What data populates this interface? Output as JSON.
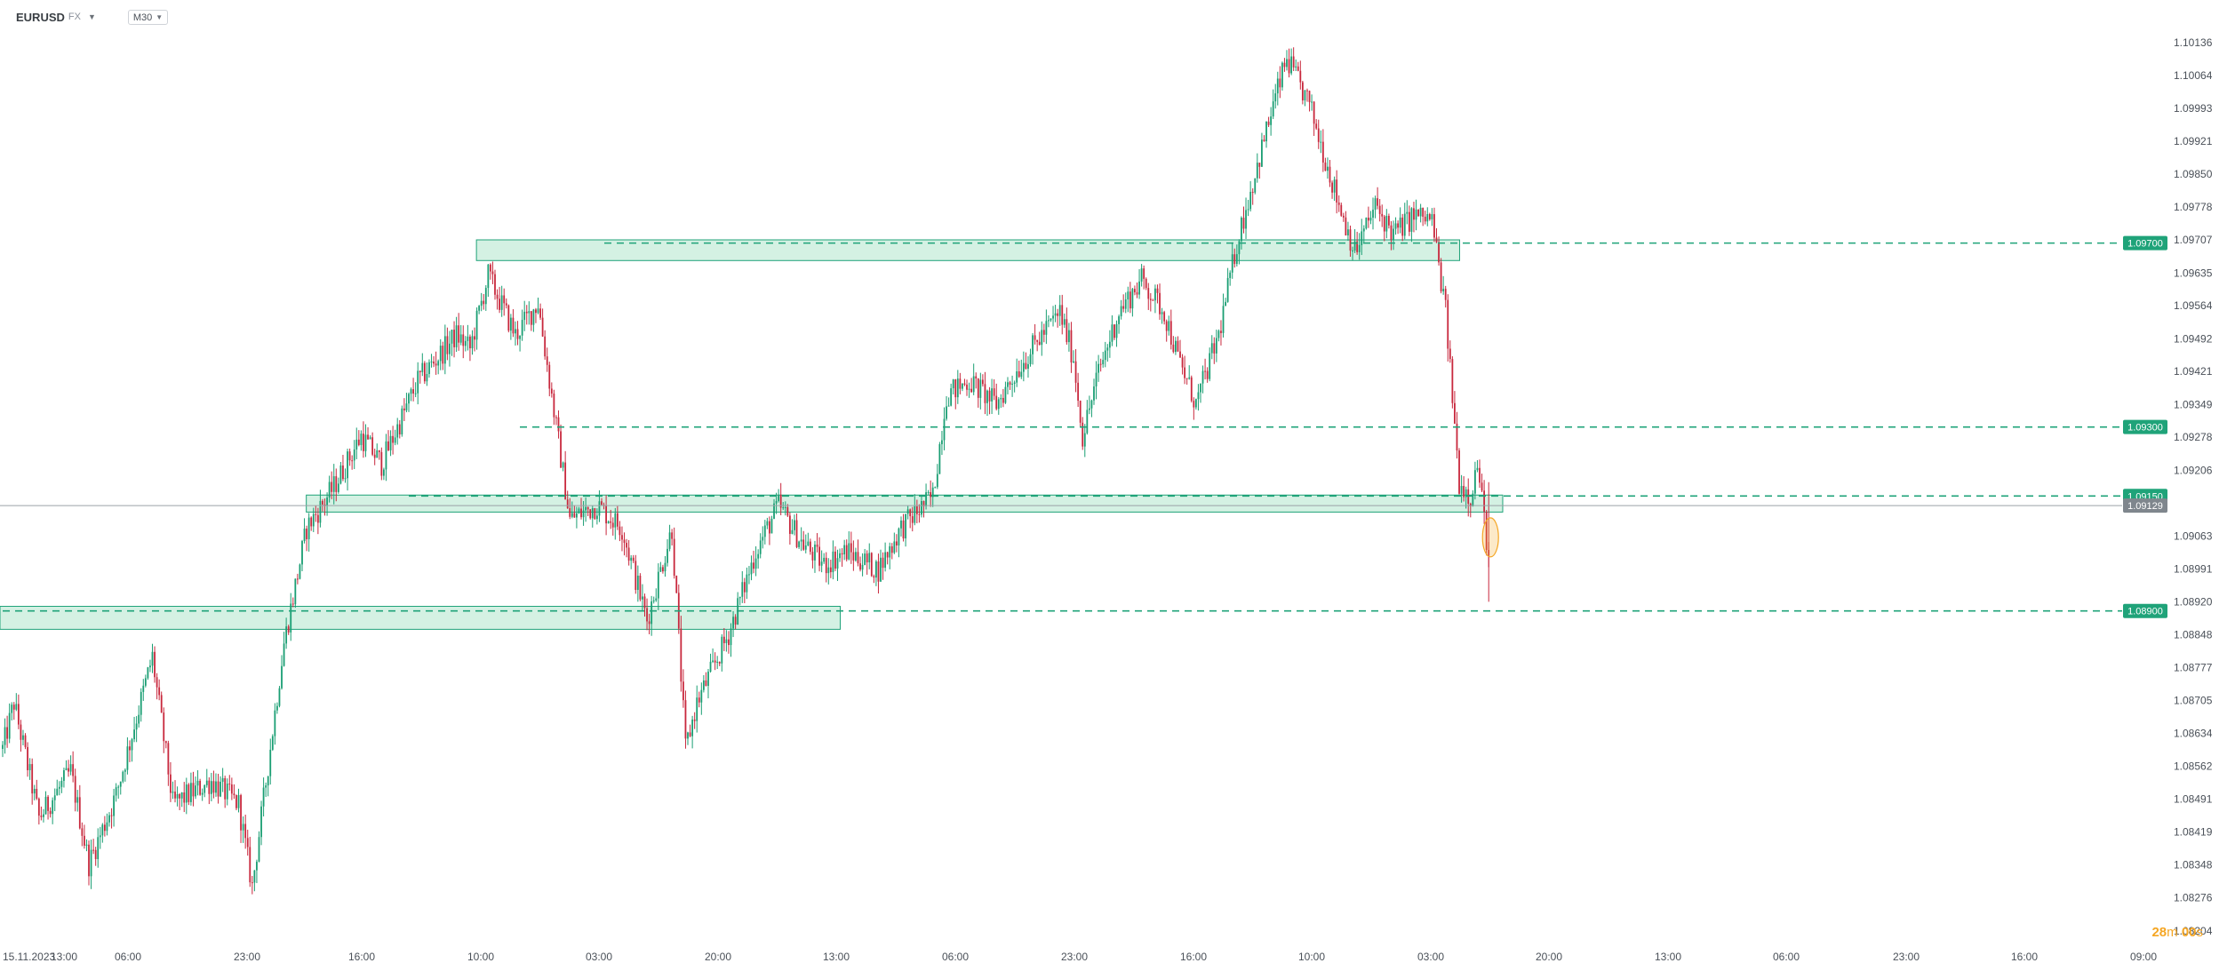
{
  "header": {
    "symbol": "EURUSD",
    "symbol_suffix": "FX",
    "timeframe": "M30"
  },
  "timer": {
    "minutes": "28",
    "min_unit": "m",
    "seconds": "00",
    "sec_unit": "s"
  },
  "colors": {
    "up": "#1a9e73",
    "down": "#c8283d",
    "zone_fill": "#cdeede",
    "zone_stroke": "#1fa379",
    "level": "#1fa379",
    "current": "#9aa0a6",
    "highlight": "#f5a623"
  },
  "chart_data": {
    "type": "candlestick",
    "symbol": "EURUSD",
    "timeframe": "M30",
    "ylim": [
      1.082,
      1.1019
    ],
    "y_ticks": [
      1.10136,
      1.10064,
      1.09993,
      1.09921,
      1.0985,
      1.09778,
      1.09707,
      1.09635,
      1.09564,
      1.09492,
      1.09421,
      1.09349,
      1.09278,
      1.09206,
      1.09063,
      1.08991,
      1.0892,
      1.08848,
      1.08777,
      1.08705,
      1.08634,
      1.08562,
      1.08491,
      1.08419,
      1.08348,
      1.08276,
      1.08204
    ],
    "x_ticks": [
      "15.11.2023",
      "13:00",
      "06:00",
      "23:00",
      "16:00",
      "10:00",
      "03:00",
      "20:00",
      "13:00",
      "06:00",
      "23:00",
      "16:00",
      "10:00",
      "03:00",
      "20:00",
      "13:00",
      "06:00",
      "23:00",
      "16:00",
      "09:00"
    ],
    "levels": [
      {
        "price": 1.097,
        "label": "1.09700"
      },
      {
        "price": 1.093,
        "label": "1.09300"
      },
      {
        "price": 1.0915,
        "label": "1.09150"
      },
      {
        "price": 1.089,
        "label": "1.08900"
      }
    ],
    "current_price": {
      "price": 1.09129,
      "label": "1.09129"
    },
    "zones": [
      {
        "from_bar": 0,
        "to_bar": 368,
        "top": 1.0891,
        "bottom": 1.0886
      },
      {
        "from_bar": 135,
        "to_bar": 660,
        "top": 1.09152,
        "bottom": 1.09115
      },
      {
        "from_bar": 210,
        "to_bar": 641,
        "top": 1.09707,
        "bottom": 1.09662
      }
    ],
    "anchors": [
      [
        0,
        1.086
      ],
      [
        5,
        1.087
      ],
      [
        16,
        1.0845
      ],
      [
        30,
        1.0855
      ],
      [
        38,
        1.0835
      ],
      [
        50,
        1.085
      ],
      [
        66,
        1.088
      ],
      [
        75,
        1.0848
      ],
      [
        92,
        1.0853
      ],
      [
        104,
        1.0848
      ],
      [
        110,
        1.083
      ],
      [
        124,
        1.0883
      ],
      [
        134,
        1.0908
      ],
      [
        146,
        1.0917
      ],
      [
        158,
        1.0928
      ],
      [
        167,
        1.0922
      ],
      [
        183,
        1.094
      ],
      [
        200,
        1.095
      ],
      [
        206,
        1.0947
      ],
      [
        214,
        1.0963
      ],
      [
        226,
        1.095
      ],
      [
        236,
        1.0957
      ],
      [
        244,
        1.093
      ],
      [
        250,
        1.091
      ],
      [
        262,
        1.0913
      ],
      [
        273,
        1.0908
      ],
      [
        284,
        1.0888
      ],
      [
        295,
        1.0908
      ],
      [
        301,
        1.086
      ],
      [
        306,
        1.087
      ],
      [
        320,
        1.0885
      ],
      [
        332,
        1.0903
      ],
      [
        342,
        1.0913
      ],
      [
        352,
        1.0905
      ],
      [
        362,
        1.09
      ],
      [
        372,
        1.0903
      ],
      [
        386,
        1.0899
      ],
      [
        396,
        1.0908
      ],
      [
        410,
        1.0915
      ],
      [
        416,
        1.0937
      ],
      [
        426,
        1.094
      ],
      [
        438,
        1.0935
      ],
      [
        448,
        1.0943
      ],
      [
        458,
        1.095
      ],
      [
        466,
        1.0955
      ],
      [
        472,
        1.0945
      ],
      [
        476,
        1.0928
      ],
      [
        483,
        1.0942
      ],
      [
        492,
        1.0955
      ],
      [
        502,
        1.0962
      ],
      [
        512,
        1.0955
      ],
      [
        518,
        1.0945
      ],
      [
        526,
        1.0935
      ],
      [
        536,
        1.095
      ],
      [
        544,
        1.097
      ],
      [
        552,
        1.0985
      ],
      [
        560,
        1.1
      ],
      [
        566,
        1.101
      ],
      [
        576,
        1.1
      ],
      [
        582,
        1.099
      ],
      [
        588,
        1.098
      ],
      [
        596,
        1.0968
      ],
      [
        605,
        1.0978
      ],
      [
        613,
        1.0972
      ],
      [
        622,
        1.0976
      ],
      [
        630,
        1.0975
      ],
      [
        636,
        1.0955
      ],
      [
        642,
        1.0918
      ],
      [
        647,
        1.0915
      ],
      [
        650,
        1.0922
      ],
      [
        655,
        1.0902
      ]
    ],
    "last_bar": 655
  }
}
